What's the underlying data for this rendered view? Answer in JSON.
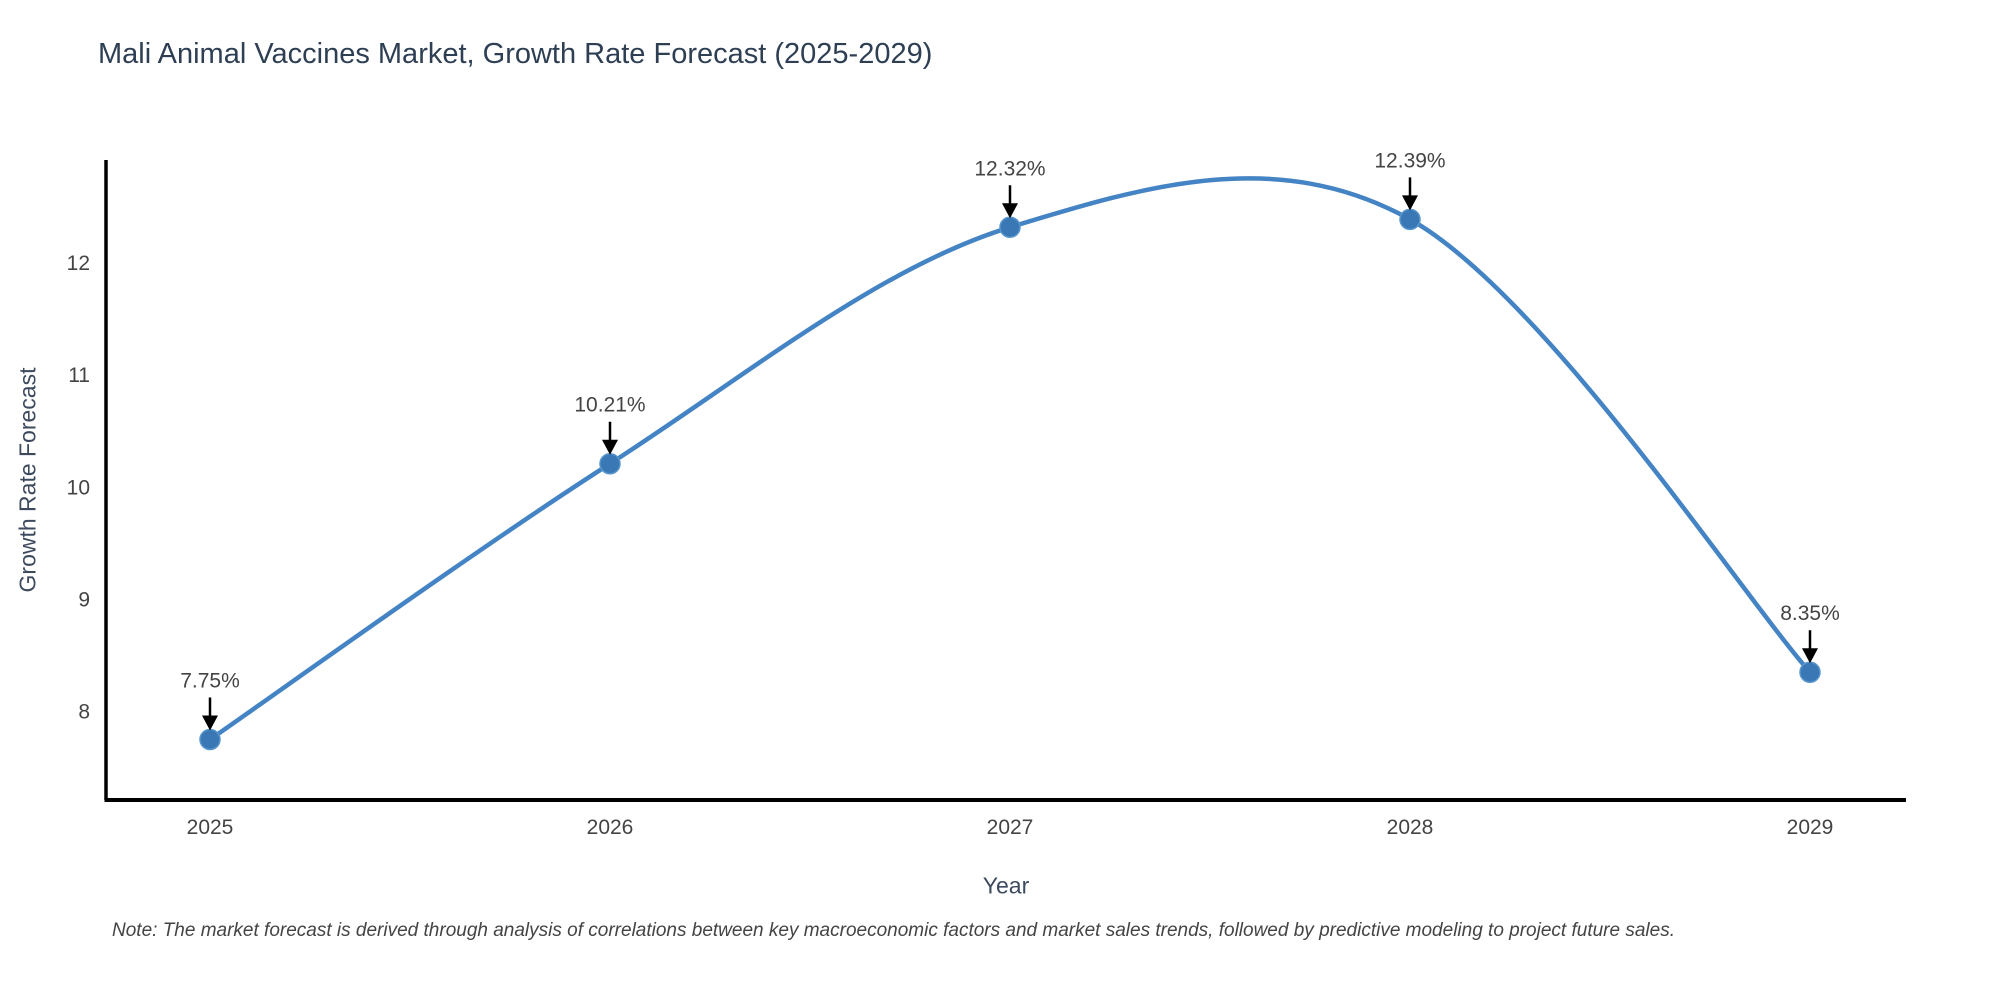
{
  "title": "Mali Animal Vaccines Market, Growth Rate Forecast (2025-2029)",
  "note": "Note: The market forecast is derived through analysis of correlations between key macroeconomic factors and market sales trends, followed by predictive modeling to project future sales.",
  "chart_data": {
    "type": "line",
    "title": "Mali Animal Vaccines Market, Growth Rate Forecast (2025-2029)",
    "xlabel": "Year",
    "ylabel": "Growth Rate Forecast",
    "x": [
      2025,
      2026,
      2027,
      2028,
      2029
    ],
    "values": [
      7.75,
      10.21,
      12.32,
      12.39,
      8.35
    ],
    "point_labels": [
      "7.75%",
      "10.21%",
      "12.32%",
      "12.39%",
      "8.35%"
    ],
    "series_name": "Growth Rate Forecast",
    "line_shape": "spline",
    "grid": false,
    "legend": "none",
    "yticks": [
      8,
      9,
      10,
      11,
      12
    ],
    "xticks": [
      2025,
      2026,
      2027,
      2028,
      2029
    ],
    "xlim": [
      2024.74,
      2029.24
    ],
    "ylim": [
      7.21,
      12.92
    ],
    "annotation_arrow": "down",
    "colors": {
      "line": "#4484c4",
      "marker": "#3a78b5",
      "marker_edge": "#5795cc",
      "axis": "#000000",
      "tick_text": "#444444",
      "title_text": "#2e3f54",
      "axis_title_text": "#3d4a5e",
      "annotation_text": "#444444",
      "annotation_arrow": "#000000",
      "background": "#ffffff"
    }
  }
}
